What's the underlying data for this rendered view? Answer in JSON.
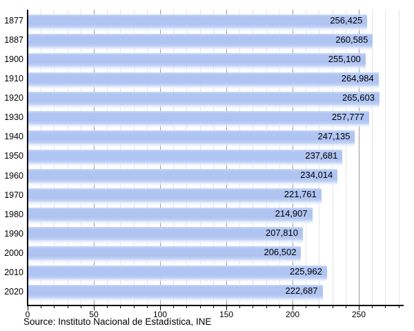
{
  "chart_data": {
    "type": "bar",
    "orientation": "horizontal",
    "title": "",
    "categories": [
      "1877",
      "1887",
      "1900",
      "1910",
      "1920",
      "1930",
      "1940",
      "1950",
      "1960",
      "1970",
      "1980",
      "1990",
      "2000",
      "2010",
      "2020"
    ],
    "values": [
      256425,
      260585,
      255100,
      264984,
      265603,
      257777,
      247135,
      237681,
      234014,
      221761,
      214907,
      207810,
      206502,
      225962,
      222687
    ],
    "value_labels": [
      "256,425",
      "260,585",
      "255,100",
      "264,984",
      "265,603",
      "257,777",
      "247,135",
      "237,681",
      "234,014",
      "221,761",
      "214,907",
      "207,810",
      "206,502",
      "225,962",
      "222,687"
    ],
    "unit_divisor": 1000,
    "xlim": [
      0,
      284
    ],
    "x_major_ticks": [
      0,
      50,
      100,
      150,
      200,
      250
    ],
    "x_minor_step": 10,
    "grid": "on",
    "legend": "none",
    "source": "Source: Instituto Nacional de Estadística, INE",
    "colors": {
      "bar": "#b1c5f2",
      "bar_highlight": "#ccdaf8",
      "bar_fade": "#e8effc",
      "grid_minor": "#e3e3e3",
      "grid_major": "#9a9a9a",
      "axis": "#000000",
      "text": "#000000",
      "background": "#ffffff"
    }
  }
}
